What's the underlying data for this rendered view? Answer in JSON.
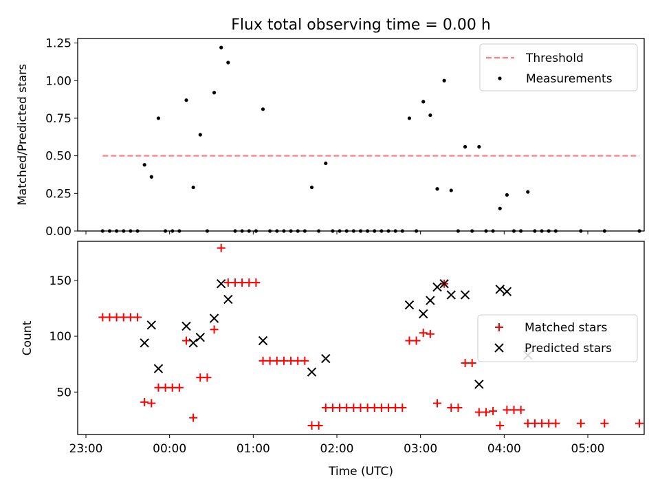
{
  "title": "Flux total observing time = 0.00 h",
  "chart_data": [
    {
      "type": "scatter",
      "ylabel": "Matched/Predicted stars",
      "ylim": [
        0,
        1.28
      ],
      "yticks": [
        "0.00",
        "0.25",
        "0.50",
        "0.75",
        "1.00",
        "1.25"
      ],
      "legend_position": "top-right",
      "threshold": {
        "name": "Threshold",
        "value": 0.5,
        "x_start": "23:12",
        "x_end": "05:37",
        "color": "#ff8080"
      },
      "series": [
        {
          "name": "Measurements",
          "color": "#000000",
          "marker": "dot",
          "points": [
            [
              "23:12",
              0
            ],
            [
              "23:17",
              0
            ],
            [
              "23:22",
              0
            ],
            [
              "23:27",
              0
            ],
            [
              "23:32",
              0
            ],
            [
              "23:37",
              0
            ],
            [
              "23:42",
              0.44
            ],
            [
              "23:47",
              0.36
            ],
            [
              "23:52",
              0.75
            ],
            [
              "23:57",
              0
            ],
            [
              "00:02",
              0
            ],
            [
              "00:07",
              0
            ],
            [
              "00:12",
              0.87
            ],
            [
              "00:17",
              0.29
            ],
            [
              "00:22",
              0.64
            ],
            [
              "00:27",
              0
            ],
            [
              "00:32",
              0.92
            ],
            [
              "00:37",
              1.22
            ],
            [
              "00:42",
              1.12
            ],
            [
              "00:47",
              0
            ],
            [
              "00:52",
              0
            ],
            [
              "00:57",
              0
            ],
            [
              "01:02",
              0
            ],
            [
              "01:07",
              0.81
            ],
            [
              "01:12",
              0
            ],
            [
              "01:17",
              0
            ],
            [
              "01:22",
              0
            ],
            [
              "01:27",
              0
            ],
            [
              "01:32",
              0
            ],
            [
              "01:37",
              0
            ],
            [
              "01:42",
              0.29
            ],
            [
              "01:47",
              0
            ],
            [
              "01:52",
              0.45
            ],
            [
              "01:57",
              0
            ],
            [
              "02:02",
              0
            ],
            [
              "02:07",
              0
            ],
            [
              "02:12",
              0
            ],
            [
              "02:17",
              0
            ],
            [
              "02:22",
              0
            ],
            [
              "02:27",
              0
            ],
            [
              "02:32",
              0
            ],
            [
              "02:37",
              0
            ],
            [
              "02:42",
              0
            ],
            [
              "02:47",
              0
            ],
            [
              "02:52",
              0.75
            ],
            [
              "02:57",
              0
            ],
            [
              "03:02",
              0.86
            ],
            [
              "03:07",
              0.77
            ],
            [
              "03:12",
              0.28
            ],
            [
              "03:17",
              1.0
            ],
            [
              "03:22",
              0.27
            ],
            [
              "03:27",
              0
            ],
            [
              "03:32",
              0.56
            ],
            [
              "03:37",
              0
            ],
            [
              "03:42",
              0.56
            ],
            [
              "03:47",
              0
            ],
            [
              "03:52",
              0
            ],
            [
              "03:57",
              0.15
            ],
            [
              "04:02",
              0.24
            ],
            [
              "04:07",
              0
            ],
            [
              "04:12",
              0
            ],
            [
              "04:17",
              0.26
            ],
            [
              "04:22",
              0
            ],
            [
              "04:27",
              0
            ],
            [
              "04:32",
              0
            ],
            [
              "04:37",
              0
            ],
            [
              "04:55",
              0
            ],
            [
              "05:12",
              0
            ],
            [
              "05:37",
              0
            ]
          ]
        }
      ]
    },
    {
      "type": "scatter",
      "xlabel": "Time (UTC)",
      "ylabel": "Count",
      "ylim": [
        12,
        185
      ],
      "yticks": [
        "50",
        "100",
        "150"
      ],
      "xticks": [
        "23:00",
        "00:00",
        "01:00",
        "02:00",
        "03:00",
        "04:00",
        "05:00"
      ],
      "legend_position": "center-right",
      "series": [
        {
          "name": "Matched stars",
          "color": "#ff0000",
          "marker": "plus",
          "points": [
            [
              "23:12",
              117
            ],
            [
              "23:17",
              117
            ],
            [
              "23:22",
              117
            ],
            [
              "23:27",
              117
            ],
            [
              "23:32",
              117
            ],
            [
              "23:37",
              117
            ],
            [
              "23:42",
              41
            ],
            [
              "23:47",
              40
            ],
            [
              "23:52",
              54
            ],
            [
              "23:57",
              54
            ],
            [
              "00:02",
              54
            ],
            [
              "00:07",
              54
            ],
            [
              "00:12",
              96
            ],
            [
              "00:17",
              27
            ],
            [
              "00:22",
              63
            ],
            [
              "00:27",
              63
            ],
            [
              "00:32",
              106
            ],
            [
              "00:37",
              179
            ],
            [
              "00:42",
              148
            ],
            [
              "00:47",
              148
            ],
            [
              "00:52",
              148
            ],
            [
              "00:57",
              148
            ],
            [
              "01:02",
              148
            ],
            [
              "01:07",
              78
            ],
            [
              "01:12",
              78
            ],
            [
              "01:17",
              78
            ],
            [
              "01:22",
              78
            ],
            [
              "01:27",
              78
            ],
            [
              "01:32",
              78
            ],
            [
              "01:37",
              78
            ],
            [
              "01:42",
              20
            ],
            [
              "01:47",
              20
            ],
            [
              "01:52",
              36
            ],
            [
              "01:57",
              36
            ],
            [
              "02:02",
              36
            ],
            [
              "02:07",
              36
            ],
            [
              "02:12",
              36
            ],
            [
              "02:17",
              36
            ],
            [
              "02:22",
              36
            ],
            [
              "02:27",
              36
            ],
            [
              "02:32",
              36
            ],
            [
              "02:37",
              36
            ],
            [
              "02:42",
              36
            ],
            [
              "02:47",
              36
            ],
            [
              "02:52",
              96
            ],
            [
              "02:57",
              96
            ],
            [
              "03:02",
              103
            ],
            [
              "03:07",
              102
            ],
            [
              "03:12",
              40
            ],
            [
              "03:17",
              147
            ],
            [
              "03:22",
              36
            ],
            [
              "03:27",
              36
            ],
            [
              "03:32",
              76
            ],
            [
              "03:37",
              76
            ],
            [
              "03:42",
              32
            ],
            [
              "03:47",
              32
            ],
            [
              "03:52",
              33
            ],
            [
              "03:57",
              20
            ],
            [
              "04:02",
              34
            ],
            [
              "04:07",
              34
            ],
            [
              "04:12",
              34
            ],
            [
              "04:17",
              22
            ],
            [
              "04:22",
              22
            ],
            [
              "04:27",
              22
            ],
            [
              "04:32",
              22
            ],
            [
              "04:37",
              22
            ],
            [
              "04:55",
              22
            ],
            [
              "05:12",
              22
            ],
            [
              "05:37",
              22
            ]
          ]
        },
        {
          "name": "Predicted stars",
          "color": "#000000",
          "marker": "x",
          "points": [
            [
              "23:42",
              94
            ],
            [
              "23:47",
              110
            ],
            [
              "23:52",
              71
            ],
            [
              "00:12",
              109
            ],
            [
              "00:17",
              94
            ],
            [
              "00:22",
              99
            ],
            [
              "00:32",
              116
            ],
            [
              "00:37",
              147
            ],
            [
              "00:42",
              133
            ],
            [
              "01:07",
              96
            ],
            [
              "01:42",
              68
            ],
            [
              "01:52",
              80
            ],
            [
              "02:52",
              128
            ],
            [
              "03:02",
              120
            ],
            [
              "03:07",
              132
            ],
            [
              "03:12",
              144
            ],
            [
              "03:17",
              147
            ],
            [
              "03:22",
              137
            ],
            [
              "03:32",
              137
            ],
            [
              "03:42",
              57
            ],
            [
              "03:57",
              142
            ],
            [
              "04:02",
              140
            ],
            [
              "04:17",
              83
            ]
          ]
        }
      ]
    }
  ]
}
